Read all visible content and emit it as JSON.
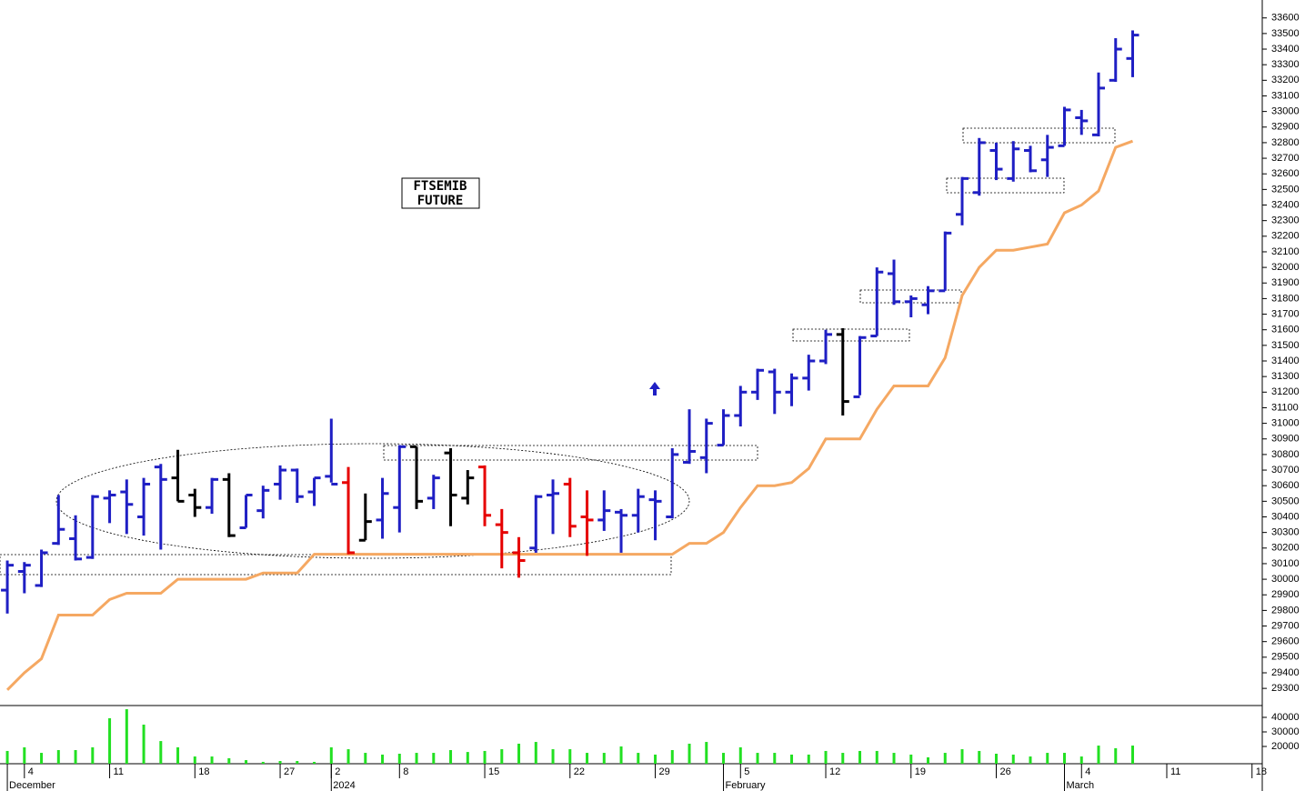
{
  "chart_data": {
    "type": "ohlc",
    "annotation": [
      "FTSEMIB",
      "FUTURE"
    ],
    "xlim": [
      -0.43,
      73.6
    ],
    "ylim": [
      29190,
      33715
    ],
    "yticks": [
      29300,
      29400,
      29500,
      29600,
      29700,
      29800,
      29900,
      30000,
      30100,
      30200,
      30300,
      30400,
      30500,
      30600,
      30700,
      30800,
      30900,
      31000,
      31100,
      31200,
      31300,
      31400,
      31500,
      31600,
      31700,
      31800,
      31900,
      32000,
      32100,
      32200,
      32300,
      32400,
      32500,
      32600,
      32700,
      32800,
      32900,
      33000,
      33100,
      33200,
      33300,
      33400,
      33500,
      33600
    ],
    "xticks": [
      {
        "value": 1,
        "label": "4"
      },
      {
        "value": 6,
        "label": "11"
      },
      {
        "value": 11,
        "label": "18"
      },
      {
        "value": 16,
        "label": "27"
      },
      {
        "value": 19,
        "label": "2"
      },
      {
        "value": 23,
        "label": "8"
      },
      {
        "value": 28,
        "label": "15"
      },
      {
        "value": 33,
        "label": "22"
      },
      {
        "value": 38,
        "label": "29"
      },
      {
        "value": 43,
        "label": "5"
      },
      {
        "value": 48,
        "label": "12"
      },
      {
        "value": 53,
        "label": "19"
      },
      {
        "value": 58,
        "label": "26"
      },
      {
        "value": 63,
        "label": "4"
      },
      {
        "value": 68,
        "label": "11"
      },
      {
        "value": 73,
        "label": "18"
      }
    ],
    "period_labels": [
      {
        "value": 0,
        "label": "December"
      },
      {
        "value": 19,
        "label": "2024"
      },
      {
        "value": 42,
        "label": "February"
      },
      {
        "value": 62,
        "label": "March"
      }
    ],
    "open": [
      29930,
      30050,
      29960,
      30230,
      30260,
      30140,
      30520,
      30560,
      30400,
      30720,
      30650,
      30540,
      30460,
      30640,
      30330,
      30440,
      30610,
      30700,
      30560,
      30660,
      30620,
      30250,
      30380,
      30460,
      30850,
      30520,
      30810,
      30520,
      30720,
      30350,
      30170,
      30200,
      30540,
      30610,
      30400,
      30380,
      30430,
      30410,
      30510,
      30400,
      30750,
      30780,
      30860,
      31050,
      31200,
      31330,
      31200,
      31290,
      31400,
      31570,
      31170,
      31560,
      31960,
      31780,
      31760,
      31850,
      32340,
      32480,
      32750,
      32570,
      32750,
      32690,
      32780,
      32960,
      32850,
      33200,
      33340
    ],
    "high": [
      30120,
      30110,
      30190,
      30540,
      30410,
      30540,
      30570,
      30640,
      30650,
      30740,
      30830,
      30580,
      30650,
      30680,
      30540,
      30600,
      30730,
      30710,
      30650,
      31030,
      30720,
      30550,
      30650,
      30860,
      30850,
      30670,
      30840,
      30700,
      30730,
      30450,
      30270,
      30540,
      30640,
      30650,
      30570,
      30570,
      30450,
      30580,
      30570,
      30840,
      31090,
      31030,
      31090,
      31240,
      31350,
      31350,
      31320,
      31440,
      31600,
      31610,
      31560,
      32000,
      32050,
      31820,
      31880,
      32230,
      32580,
      32830,
      32800,
      32810,
      32780,
      32850,
      33030,
      33010,
      33250,
      33470,
      33520
    ],
    "low": [
      29780,
      29910,
      29950,
      30220,
      30120,
      30130,
      30360,
      30290,
      30280,
      30190,
      30500,
      30400,
      30420,
      30270,
      30330,
      30390,
      30510,
      30490,
      30470,
      30620,
      30160,
      30250,
      30260,
      30300,
      30450,
      30450,
      30340,
      30480,
      30340,
      30070,
      30010,
      30170,
      30290,
      30270,
      30150,
      30310,
      30170,
      30300,
      30250,
      30390,
      30740,
      30680,
      30860,
      30980,
      31150,
      31060,
      31110,
      31210,
      31380,
      31050,
      31180,
      31560,
      31760,
      31680,
      31700,
      31850,
      32270,
      32460,
      32560,
      32550,
      32610,
      32580,
      32780,
      32850,
      32840,
      33190,
      33220
    ],
    "close": [
      30090,
      30090,
      30170,
      30320,
      30130,
      30530,
      30540,
      30480,
      30610,
      30640,
      30500,
      30460,
      30640,
      30280,
      30540,
      30570,
      30700,
      30530,
      30650,
      30610,
      30170,
      30370,
      30550,
      30850,
      30500,
      30650,
      30540,
      30650,
      30410,
      30300,
      30120,
      30530,
      30550,
      30340,
      30380,
      30440,
      30410,
      30530,
      30500,
      30800,
      30820,
      31000,
      31050,
      31200,
      31340,
      31200,
      31290,
      31400,
      31570,
      31140,
      31550,
      31970,
      31780,
      31800,
      31850,
      32220,
      32570,
      32800,
      32630,
      32760,
      32620,
      32770,
      33010,
      32940,
      33150,
      33400,
      33490
    ],
    "colors": [
      "#1f1fc4",
      "#1f1fc4",
      "#1f1fc4",
      "#1f1fc4",
      "#1f1fc4",
      "#1f1fc4",
      "#1f1fc4",
      "#1f1fc4",
      "#1f1fc4",
      "#1f1fc4",
      "#000000",
      "#000000",
      "#1f1fc4",
      "#000000",
      "#1f1fc4",
      "#1f1fc4",
      "#1f1fc4",
      "#1f1fc4",
      "#1f1fc4",
      "#1f1fc4",
      "#e60000",
      "#000000",
      "#1f1fc4",
      "#1f1fc4",
      "#000000",
      "#1f1fc4",
      "#000000",
      "#000000",
      "#e60000",
      "#e60000",
      "#e60000",
      "#1f1fc4",
      "#1f1fc4",
      "#e60000",
      "#e60000",
      "#1f1fc4",
      "#1f1fc4",
      "#1f1fc4",
      "#1f1fc4",
      "#1f1fc4",
      "#1f1fc4",
      "#1f1fc4",
      "#1f1fc4",
      "#1f1fc4",
      "#1f1fc4",
      "#1f1fc4",
      "#1f1fc4",
      "#1f1fc4",
      "#1f1fc4",
      "#000000",
      "#1f1fc4",
      "#1f1fc4",
      "#1f1fc4",
      "#1f1fc4",
      "#1f1fc4",
      "#1f1fc4",
      "#1f1fc4",
      "#1f1fc4",
      "#1f1fc4",
      "#1f1fc4",
      "#1f1fc4",
      "#1f1fc4",
      "#1f1fc4",
      "#1f1fc4",
      "#1f1fc4",
      "#1f1fc4",
      "#1f1fc4"
    ],
    "overlay": {
      "color": "#f5a862",
      "values": [
        29290,
        29400,
        29490,
        29770,
        29770,
        29770,
        29870,
        29910,
        29910,
        29910,
        30000,
        30000,
        30000,
        30000,
        30000,
        30040,
        30040,
        30040,
        30160,
        30160,
        30160,
        30160,
        30160,
        30160,
        30160,
        30160,
        30160,
        30160,
        30160,
        30160,
        30160,
        30160,
        30160,
        30160,
        30160,
        30160,
        30160,
        30160,
        30160,
        30160,
        30230,
        30230,
        30300,
        30460,
        30600,
        30600,
        30620,
        30710,
        30900,
        30900,
        30900,
        31090,
        31240,
        31240,
        31240,
        31420,
        31820,
        32000,
        32110,
        32110,
        32130,
        32150,
        32350,
        32400,
        32490,
        32770,
        32810
      ]
    },
    "volume": {
      "color": "#22e022",
      "ylim": [
        8125,
        48125
      ],
      "yticks": [
        20000,
        30000,
        40000
      ],
      "values": [
        16900,
        19400,
        15600,
        17500,
        17500,
        19400,
        39400,
        45600,
        35000,
        23700,
        19400,
        13100,
        13100,
        11900,
        10600,
        9400,
        10000,
        10000,
        9400,
        19400,
        18100,
        15600,
        14400,
        15000,
        15600,
        15600,
        17500,
        16200,
        16900,
        18100,
        21900,
        23100,
        18100,
        18100,
        15600,
        15600,
        20000,
        15600,
        14400,
        17500,
        21900,
        23100,
        15600,
        19400,
        15600,
        15600,
        14400,
        14400,
        16900,
        15600,
        16900,
        16900,
        15600,
        14400,
        12500,
        15600,
        18100,
        16900,
        15000,
        14400,
        13100,
        15600,
        15600,
        13100,
        20600,
        18800,
        20600
      ]
    }
  }
}
